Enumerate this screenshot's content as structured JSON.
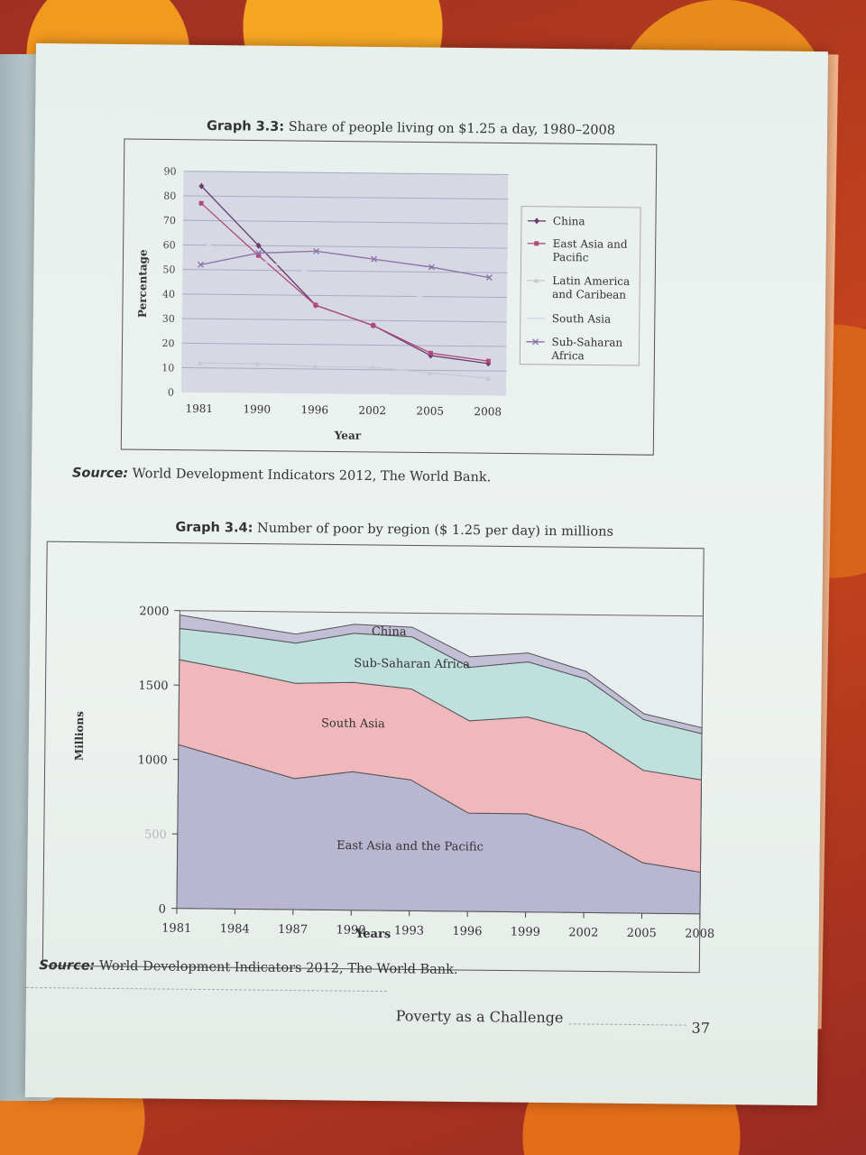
{
  "page": {
    "graph33_title_bold": "Graph 3.3:",
    "graph33_title_rest": " Share of people living on $1.25 a day, 1980–2008",
    "graph33_source_bold": "Source:",
    "graph33_source_rest": " World Development Indicators 2012, The World Bank.",
    "graph34_title_bold": "Graph 3.4:",
    "graph34_title_rest": " Number of poor by region ($ 1.25 per day) in millions",
    "graph34_source_bold": "Source:",
    "graph34_source_rest": " World Development Indicators 2012, The World Bank.",
    "footer_text": "Poverty as a Challenge",
    "page_number": "37"
  },
  "chart_data": [
    {
      "type": "line",
      "title": "Graph 3.3: Share of people living on $1.25 a day, 1980–2008",
      "xlabel": "Year",
      "ylabel": "Percentage",
      "categories": [
        "1981",
        "1990",
        "1996",
        "2002",
        "2005",
        "2008"
      ],
      "yticks": [
        "0",
        "10",
        "20",
        "30",
        "40",
        "50",
        "60",
        "70",
        "80",
        "90"
      ],
      "ylim": [
        0,
        90
      ],
      "grid": true,
      "legend_position": "right",
      "series": [
        {
          "name": "China",
          "values": [
            84,
            60,
            36,
            28,
            16,
            13
          ],
          "color": "#6b3a6e",
          "marker": "diamond"
        },
        {
          "name": "East Asia and Pacific",
          "values": [
            77,
            56,
            36,
            28,
            17,
            14
          ],
          "color": "#b04a7a",
          "marker": "square"
        },
        {
          "name": "Latin America and Caribean",
          "values": [
            12,
            12,
            11,
            11,
            9,
            7
          ],
          "color": "#c9c9d0",
          "marker": "triangle"
        },
        {
          "name": "South Asia",
          "values": [
            61,
            54,
            49,
            44,
            39,
            36
          ],
          "color": "#cfd6e4",
          "marker": "none"
        },
        {
          "name": "Sub-Saharan Africa",
          "values": [
            52,
            57,
            58,
            55,
            52,
            48
          ],
          "color": "#8c6ea8",
          "marker": "x"
        }
      ],
      "legend_labels": [
        {
          "line1": "China",
          "line2": ""
        },
        {
          "line1": "East Asia and",
          "line2": "Pacific"
        },
        {
          "line1": "Latin America",
          "line2": "and Caribean"
        },
        {
          "line1": "South Asia",
          "line2": ""
        },
        {
          "line1": "Sub-Saharan",
          "line2": "Africa"
        }
      ]
    },
    {
      "type": "area",
      "title": "Graph 3.4: Number of poor by region ($ 1.25 per day) in millions",
      "xlabel": "Years",
      "ylabel": "Millions",
      "categories": [
        "1981",
        "1984",
        "1987",
        "1990",
        "1993",
        "1996",
        "1999",
        "2002",
        "2005",
        "2008"
      ],
      "yticks": [
        "0",
        "500",
        "1000",
        "1500",
        "2000"
      ],
      "ylim": [
        0,
        2000
      ],
      "stacked": true,
      "series": [
        {
          "name": "East Asia and the Pacific",
          "values": [
            1100,
            990,
            880,
            930,
            880,
            660,
            660,
            550,
            340,
            280
          ],
          "color": "#b8b6d0"
        },
        {
          "name": "South Asia",
          "values": [
            570,
            610,
            640,
            600,
            610,
            620,
            650,
            660,
            620,
            620
          ],
          "color": "#f0b8bc"
        },
        {
          "name": "Sub-Saharan Africa",
          "values": [
            210,
            240,
            270,
            330,
            350,
            360,
            370,
            360,
            340,
            310
          ],
          "color": "#bfe0dd"
        },
        {
          "name": "China",
          "values": [
            90,
            70,
            60,
            60,
            65,
            70,
            60,
            50,
            40,
            40
          ],
          "color": "#c1bed6"
        }
      ],
      "area_labels": [
        "East Asia and the Pacific",
        "South Asia",
        "Sub-Saharan Africa",
        "China"
      ]
    }
  ]
}
